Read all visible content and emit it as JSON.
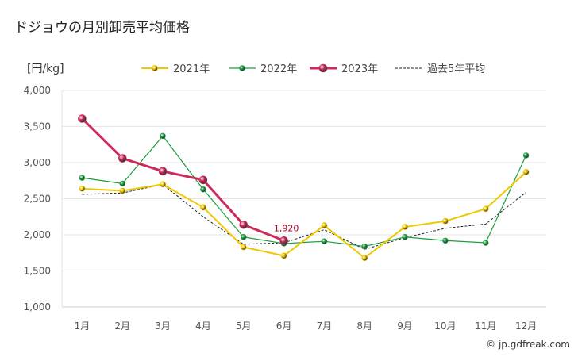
{
  "chart_data": {
    "type": "line",
    "title": "ドジョウの月別卸売平均価格",
    "ylabel": "[円/kg]",
    "categories": [
      "1月",
      "2月",
      "3月",
      "4月",
      "5月",
      "6月",
      "7月",
      "8月",
      "9月",
      "10月",
      "11月",
      "12月"
    ],
    "ylim": [
      1000,
      4000
    ],
    "yticks": [
      "1,000",
      "1,500",
      "2,000",
      "2,500",
      "3,000",
      "3,500",
      "4,000"
    ],
    "grid": true,
    "legend_position": "top",
    "series": [
      {
        "name": "2021年",
        "color": "#f0c800",
        "values": [
          2640,
          2610,
          2700,
          2380,
          1830,
          1710,
          2130,
          1680,
          2110,
          2190,
          2360,
          2870
        ]
      },
      {
        "name": "2022年",
        "color": "#1a9e3f",
        "values": [
          2790,
          2710,
          3370,
          2630,
          1970,
          1880,
          1910,
          1840,
          1970,
          1920,
          1890,
          3100
        ]
      },
      {
        "name": "2023年",
        "color": "#cc2a5a",
        "values": [
          3610,
          3060,
          2880,
          2760,
          2140,
          1920,
          null,
          null,
          null,
          null,
          null,
          null
        ]
      },
      {
        "name": "過去5年平均",
        "color": "#222222",
        "values": [
          2560,
          2580,
          2700,
          2250,
          1870,
          1890,
          2070,
          1800,
          1960,
          2090,
          2150,
          2590
        ]
      }
    ],
    "annotations": [
      {
        "series": "2023年",
        "category": "6月",
        "text": "1,920"
      }
    ]
  },
  "credit": "© jp.gdfreak.com"
}
